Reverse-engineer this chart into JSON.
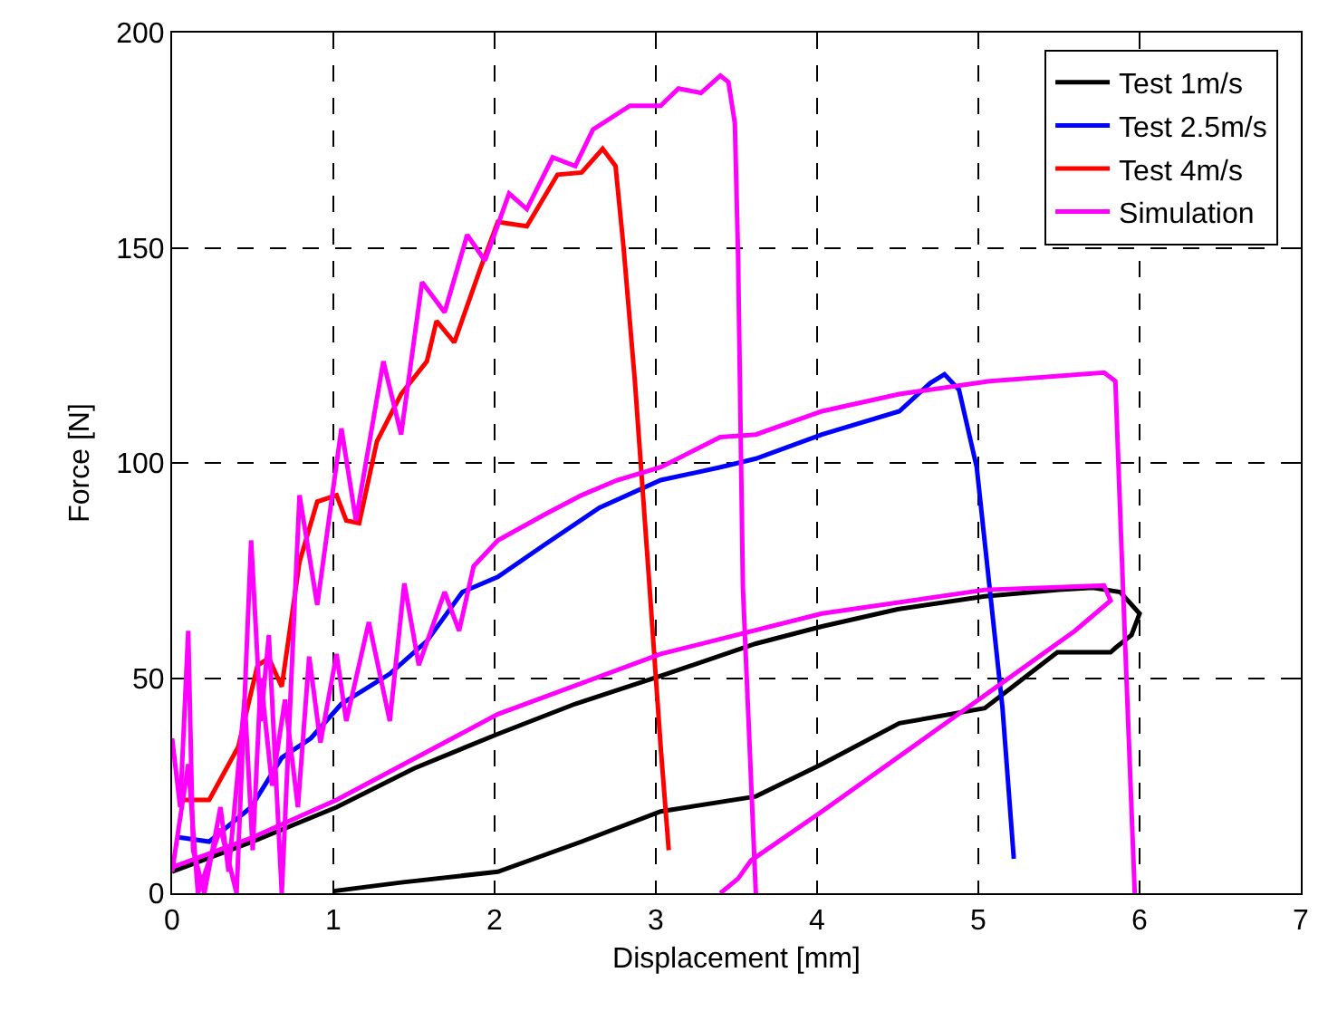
{
  "chart_data": {
    "type": "line",
    "xlabel": "Displacement [mm]",
    "ylabel": "Force [N]",
    "xlim": [
      0,
      7
    ],
    "ylim": [
      0,
      200
    ],
    "xticks": [
      0,
      1,
      2,
      3,
      4,
      5,
      6,
      7
    ],
    "yticks": [
      0,
      50,
      100,
      150,
      200
    ],
    "grid": true,
    "legend": "top right",
    "marker": "none",
    "line_style": "solid",
    "series": [
      {
        "name": "Test 1m/s",
        "color": "#000000",
        "x": [
          0,
          0.5,
          1.02,
          1.5,
          2.02,
          2.5,
          3.03,
          3.62,
          4.03,
          4.5,
          5.04,
          5.5,
          5.71,
          5.88,
          6.0,
          5.95,
          5.85,
          5.82,
          5.49,
          5.04,
          4.51,
          4.03,
          3.62,
          3.03,
          2.54,
          2.02,
          1.42,
          1.0
        ],
        "values": [
          5,
          12,
          20,
          29,
          37,
          44,
          50.5,
          58,
          62,
          66,
          69,
          70.5,
          71,
          70,
          65,
          60,
          57,
          56,
          56,
          43,
          39.5,
          30,
          22.5,
          19,
          12,
          5,
          2.5,
          0.5
        ]
      },
      {
        "name": "Test 2.5m/s",
        "color": "#0000ff",
        "x": [
          0.04,
          0.23,
          0.49,
          0.68,
          0.86,
          1.05,
          1.35,
          1.58,
          1.8,
          2.02,
          2.31,
          2.65,
          3.03,
          3.4,
          3.62,
          4.03,
          4.51,
          4.7,
          4.79,
          4.88,
          4.99,
          5.07,
          5.15,
          5.22
        ],
        "values": [
          13,
          12,
          20,
          31.5,
          36,
          44,
          51,
          58.6,
          70,
          73.5,
          81,
          89.6,
          96,
          99,
          101,
          106.6,
          112,
          118.5,
          120.6,
          117,
          99,
          71,
          43,
          8
        ]
      },
      {
        "name": "Test 4m/s",
        "color": "#ff0000",
        "x": [
          0.04,
          0.23,
          0.41,
          0.53,
          0.6,
          0.68,
          0.79,
          0.9,
          1.02,
          1.08,
          1.16,
          1.27,
          1.42,
          1.58,
          1.64,
          1.75,
          1.91,
          2.02,
          2.2,
          2.39,
          2.54,
          2.67,
          2.75,
          2.8,
          2.87,
          2.95,
          3.03,
          3.08
        ],
        "values": [
          21.7,
          21.7,
          34,
          53,
          54.6,
          48,
          77,
          91,
          92.5,
          86.6,
          86,
          105,
          116,
          123.6,
          133,
          128,
          145,
          156,
          155,
          167,
          167.5,
          173,
          169,
          150,
          119,
          77,
          34,
          10
        ]
      },
      {
        "name": "Simulation",
        "color": "#ff00ff",
        "x": [
          0,
          0.5,
          1.02,
          2.02,
          3.03,
          4.03,
          5.04,
          5.78,
          5.82,
          5.6,
          5.04,
          4.03,
          3.59,
          3.51,
          3.4,
          null,
          0,
          0.05,
          0.1,
          0.13,
          0.2,
          0.3,
          0.35,
          0.45,
          0.5,
          0.55,
          0.62,
          0.7,
          0.78,
          0.85,
          0.92,
          1.02,
          1.08,
          1.22,
          1.35,
          1.44,
          1.53,
          1.69,
          1.78,
          1.87,
          2.02,
          2.31,
          2.54,
          2.76,
          3.03,
          3.4,
          3.62,
          4.03,
          4.51,
          5.07,
          5.78,
          5.85,
          5.89,
          5.97,
          null,
          0,
          0.1,
          0.16,
          0.3,
          0.4,
          0.49,
          0.55,
          0.6,
          0.68,
          0.79,
          0.9,
          1.05,
          1.14,
          1.31,
          1.42,
          1.55,
          1.69,
          1.83,
          1.94,
          2.09,
          2.2,
          2.36,
          2.5,
          2.61,
          2.84,
          3.03,
          3.14,
          3.28,
          3.4,
          3.45,
          3.49,
          3.51,
          3.54,
          3.62
        ],
        "values": [
          6,
          13,
          21.7,
          41.6,
          55.6,
          65,
          70.5,
          71.5,
          68,
          61,
          46,
          19,
          7.6,
          3.4,
          0,
          null,
          36,
          20,
          61,
          10,
          0,
          20,
          5,
          45,
          10,
          50,
          25,
          45,
          20,
          55,
          35,
          55.6,
          40,
          63,
          40,
          72,
          53,
          70,
          61,
          76,
          82,
          88,
          92.5,
          96,
          99,
          106,
          106.6,
          112,
          116,
          119,
          121,
          119,
          78,
          0,
          null,
          5,
          30,
          0,
          15,
          0,
          82,
          40,
          60,
          0,
          92.5,
          67,
          108,
          86.6,
          123.6,
          106.6,
          142,
          135,
          153,
          147,
          162.6,
          159,
          171,
          169,
          177.5,
          183,
          183,
          187,
          186,
          190,
          188.5,
          179,
          148,
          71,
          0
        ]
      }
    ]
  }
}
